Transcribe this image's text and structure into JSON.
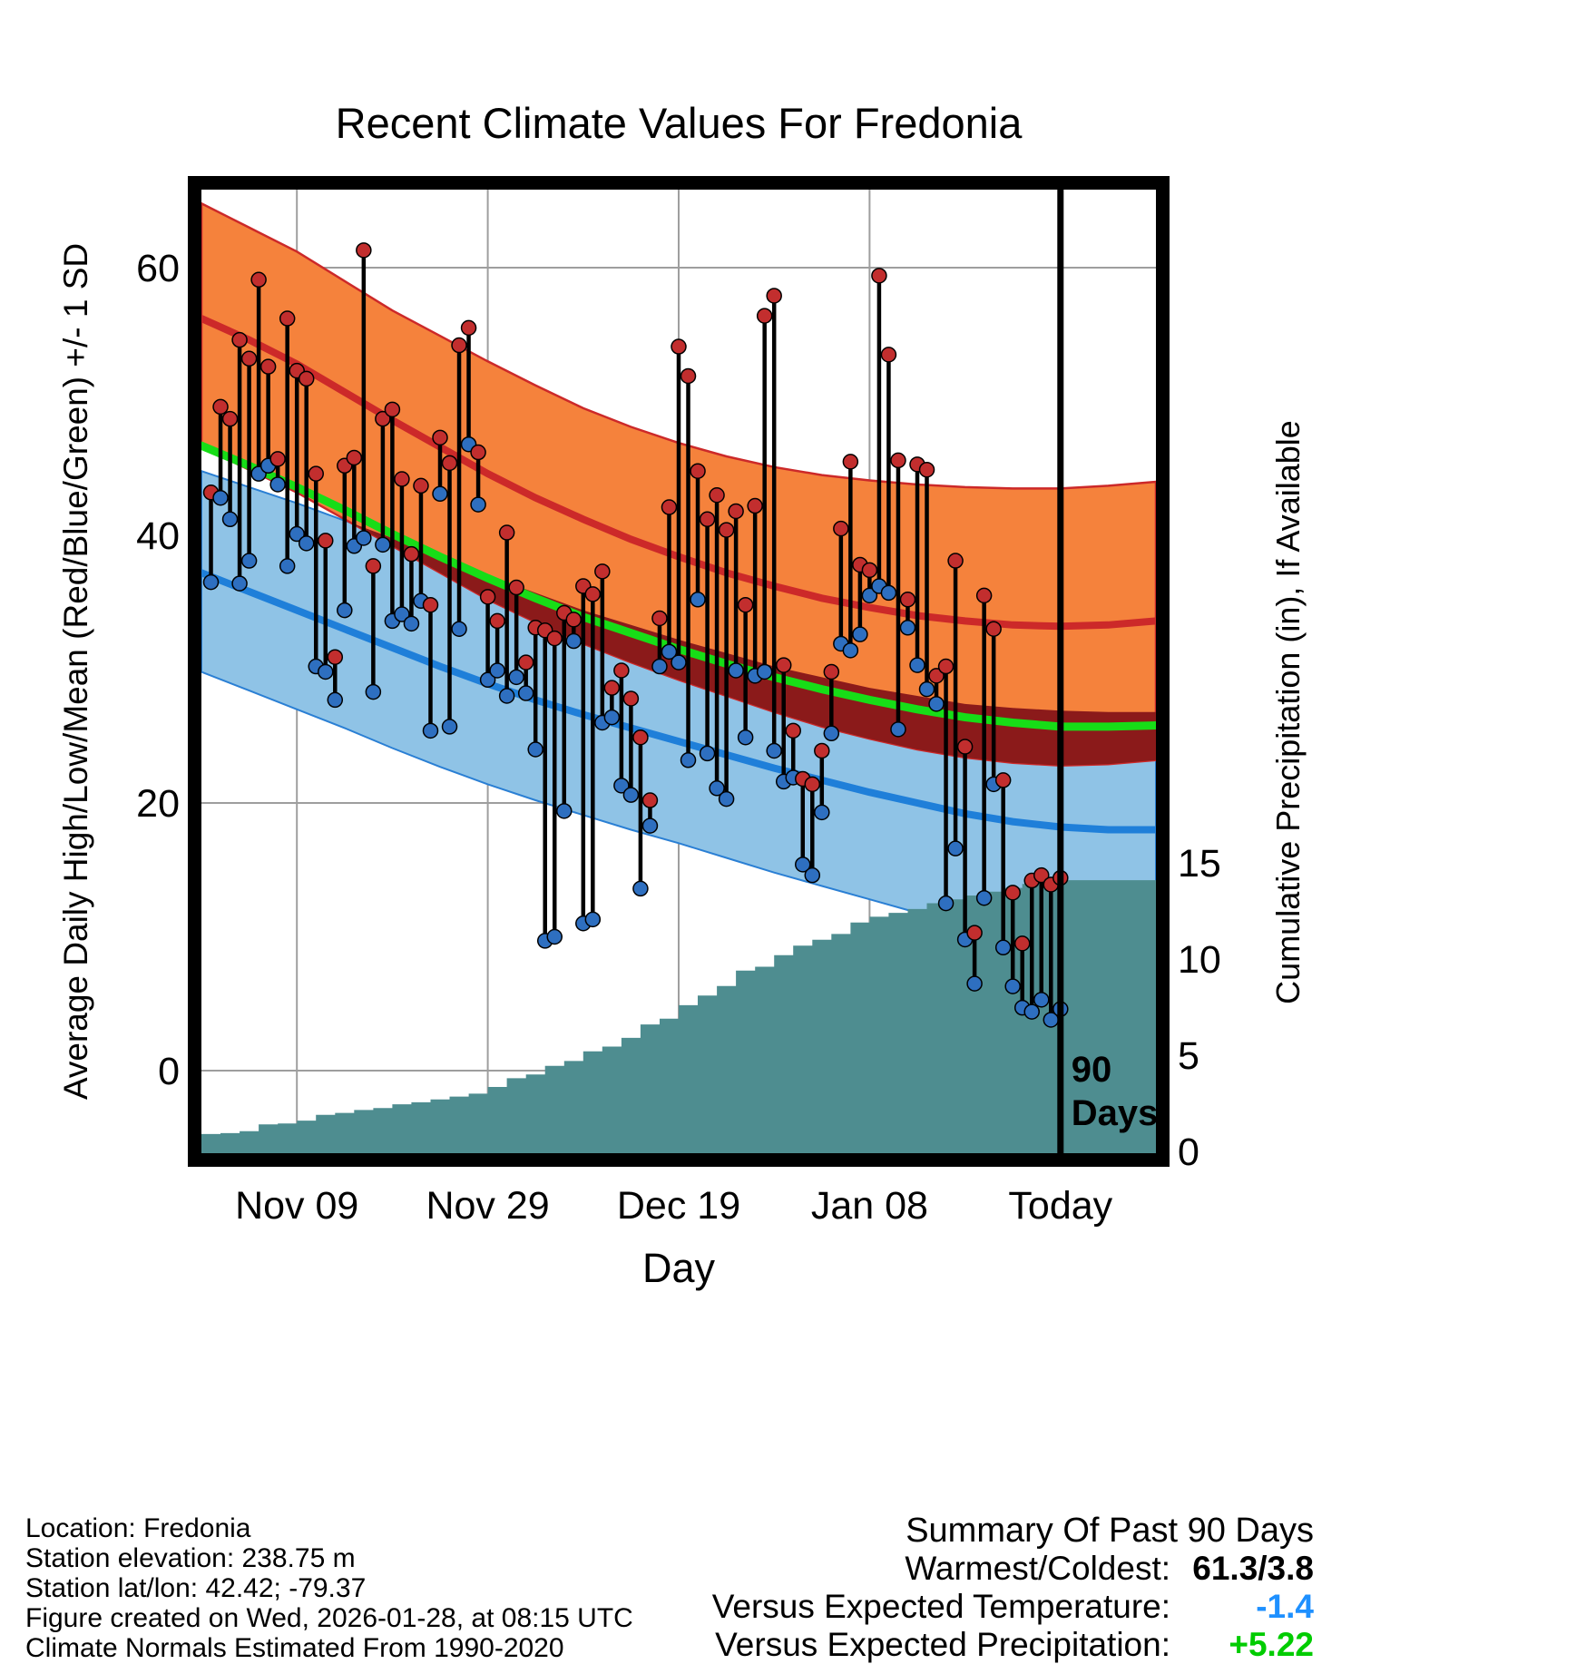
{
  "title": "Recent Climate Values For Fredonia",
  "axes": {
    "left_label": "Average Daily High/Low/Mean (Red/Blue/Green) +/- 1 SD",
    "right_label": "Cumulative Precipitation (in), If Available",
    "x_label": "Day"
  },
  "footer": {
    "lines": [
      "Location: Fredonia",
      "Station elevation: 238.75 m",
      "Station lat/lon: 42.42; -79.37",
      "Figure created on Wed, 2026-01-28, at 08:15 UTC",
      "Climate Normals Estimated From 1990-2020"
    ]
  },
  "summary": {
    "title": "Summary Of Past 90 Days",
    "rows": [
      {
        "label": "Warmest/Coldest:",
        "value": "61.3/3.8",
        "color": "#000000"
      },
      {
        "label": "Versus Expected Temperature:",
        "value": "-1.4",
        "color": "#1E90FF"
      },
      {
        "label": "Versus Expected Precipitation:",
        "value": "+5.22",
        "color": "#00CC00"
      }
    ]
  },
  "chart_data": {
    "type": "line",
    "description": "Daily observed high/low temperature bars with climate normal bands (high/low mean +/- 1 SD), mean line, and cumulative precipitation area over past 90 days",
    "x_axis": {
      "domain_days": [
        0,
        100
      ],
      "today_day": 90,
      "ticks": [
        {
          "day": 10,
          "label": "Nov 09"
        },
        {
          "day": 30,
          "label": "Nov 29"
        },
        {
          "day": 50,
          "label": "Dec 19"
        },
        {
          "day": 70,
          "label": "Jan 08"
        },
        {
          "day": 90,
          "label": "Today"
        }
      ]
    },
    "temp_axis": {
      "ticks": [
        0,
        20,
        40,
        60
      ],
      "range": [
        -6.2,
        65.8
      ]
    },
    "precip_axis": {
      "ticks": [
        0,
        5,
        10,
        15
      ],
      "range": [
        0,
        15
      ]
    },
    "today_annotation": {
      "line1": "90",
      "line2": "Days"
    },
    "normals": {
      "days": [
        0,
        5,
        10,
        15,
        20,
        25,
        30,
        35,
        40,
        45,
        50,
        55,
        60,
        65,
        70,
        75,
        80,
        85,
        90,
        95,
        100
      ],
      "high_upper": [
        64.8,
        63.0,
        61.2,
        59.0,
        56.8,
        54.9,
        53.0,
        51.2,
        49.5,
        48.1,
        46.9,
        45.9,
        45.1,
        44.5,
        44.1,
        43.8,
        43.6,
        43.5,
        43.5,
        43.7,
        44.0
      ],
      "high_mean": [
        56.2,
        54.6,
        52.8,
        50.7,
        48.6,
        46.6,
        44.6,
        42.8,
        41.2,
        39.7,
        38.4,
        37.2,
        36.2,
        35.3,
        34.6,
        34.0,
        33.6,
        33.3,
        33.2,
        33.3,
        33.6
      ],
      "high_lower": [
        46.6,
        44.9,
        43.2,
        41.2,
        39.2,
        37.2,
        35.2,
        33.5,
        31.9,
        30.5,
        29.2,
        28.0,
        26.8,
        25.7,
        24.8,
        24.0,
        23.4,
        23.0,
        22.8,
        22.9,
        23.2
      ],
      "mean": [
        46.7,
        45.2,
        43.6,
        41.9,
        40.1,
        38.4,
        36.8,
        35.3,
        33.9,
        32.7,
        31.5,
        30.4,
        29.4,
        28.5,
        27.7,
        27.0,
        26.4,
        26.0,
        25.7,
        25.7,
        25.8
      ],
      "low_upper": [
        44.8,
        43.6,
        42.4,
        41.1,
        39.8,
        38.4,
        37.0,
        35.7,
        34.4,
        33.3,
        32.2,
        31.2,
        30.2,
        29.4,
        28.6,
        28.0,
        27.4,
        27.1,
        26.9,
        26.8,
        26.8
      ],
      "low_mean": [
        37.2,
        35.8,
        34.4,
        33.0,
        31.6,
        30.2,
        28.9,
        27.7,
        26.6,
        25.6,
        24.6,
        23.6,
        22.6,
        21.7,
        20.8,
        20.0,
        19.2,
        18.6,
        18.2,
        18.0,
        18.0
      ],
      "low_lower": [
        29.8,
        28.4,
        27.0,
        25.6,
        24.1,
        22.7,
        21.4,
        20.2,
        19.1,
        18.0,
        17.0,
        15.9,
        14.8,
        13.8,
        12.8,
        11.8,
        10.8,
        10.1,
        9.5,
        9.3,
        9.2
      ]
    },
    "observations": {
      "first_day": 1,
      "note": "consecutive daily values, day index relative to x-axis domain",
      "highs": [
        43.2,
        49.6,
        48.7,
        54.6,
        53.2,
        59.1,
        52.6,
        45.7,
        56.2,
        52.3,
        51.7,
        44.6,
        39.6,
        30.9,
        45.2,
        45.8,
        61.3,
        37.7,
        48.7,
        49.4,
        44.2,
        38.6,
        43.7,
        34.8,
        47.3,
        45.4,
        54.2,
        55.5,
        46.2,
        35.4,
        33.6,
        40.2,
        36.1,
        30.5,
        33.1,
        32.9,
        32.3,
        34.2,
        33.7,
        36.2,
        35.6,
        37.3,
        28.6,
        29.9,
        27.8,
        24.9,
        20.2,
        33.8,
        42.1,
        54.1,
        51.9,
        44.8,
        41.2,
        43.0,
        40.4,
        41.8,
        34.8,
        42.2,
        56.4,
        57.9,
        30.3,
        25.4,
        21.8,
        21.4,
        23.9,
        29.8,
        40.5,
        45.5,
        37.8,
        37.4,
        59.4,
        53.5,
        45.6,
        35.2,
        45.3,
        44.9,
        29.5,
        30.2,
        38.1,
        24.2,
        10.3,
        35.5,
        33.0,
        21.7,
        13.3,
        9.5,
        14.2,
        14.6,
        13.9,
        14.4
      ],
      "lows": [
        36.5,
        42.8,
        41.2,
        36.4,
        38.1,
        44.6,
        45.2,
        43.8,
        37.7,
        40.1,
        39.4,
        30.2,
        29.8,
        27.7,
        34.4,
        39.2,
        39.8,
        28.3,
        39.3,
        33.6,
        34.1,
        33.4,
        35.1,
        25.4,
        43.1,
        25.7,
        33.0,
        46.8,
        42.3,
        29.2,
        29.9,
        28.0,
        29.4,
        28.2,
        24.0,
        9.7,
        10.0,
        19.4,
        32.1,
        11.0,
        11.3,
        26.0,
        26.4,
        21.3,
        20.6,
        13.6,
        18.3,
        30.2,
        31.3,
        30.5,
        23.2,
        35.2,
        23.7,
        21.1,
        20.3,
        29.9,
        24.9,
        29.5,
        29.8,
        23.9,
        21.6,
        21.9,
        15.4,
        14.6,
        19.3,
        25.2,
        31.9,
        31.4,
        32.6,
        35.5,
        36.2,
        35.7,
        25.5,
        33.1,
        30.3,
        28.5,
        27.4,
        12.5,
        16.6,
        9.8,
        6.5,
        12.9,
        21.4,
        9.2,
        6.3,
        4.7,
        4.4,
        5.3,
        3.8,
        4.6
      ]
    },
    "precip": {
      "days": [
        0,
        2,
        4,
        6,
        8,
        10,
        12,
        14,
        16,
        18,
        20,
        22,
        24,
        26,
        28,
        30,
        32,
        34,
        36,
        38,
        40,
        42,
        44,
        46,
        48,
        50,
        52,
        54,
        56,
        58,
        60,
        62,
        64,
        66,
        68,
        70,
        72,
        74,
        76,
        78,
        80,
        82,
        84,
        86,
        88,
        90,
        100
      ],
      "cumulative": [
        0.9,
        0.95,
        1.05,
        1.4,
        1.45,
        1.6,
        1.9,
        2.0,
        2.15,
        2.25,
        2.45,
        2.55,
        2.7,
        2.85,
        3.0,
        3.35,
        3.8,
        4.0,
        4.45,
        4.7,
        5.2,
        5.45,
        5.9,
        6.6,
        6.9,
        7.6,
        8.1,
        8.6,
        9.4,
        9.6,
        10.2,
        10.7,
        11.0,
        11.3,
        11.9,
        12.2,
        12.4,
        12.6,
        12.9,
        13.1,
        13.3,
        13.5,
        13.7,
        13.9,
        14.0,
        14.1,
        14.15
      ]
    },
    "colors": {
      "high_band": "#F5823C",
      "high_line": "#CC2929",
      "band_overlap": "#8B1A1A",
      "mean_line": "#17DD17",
      "low_band": "#8FC3E6",
      "low_line": "#1F7FD9",
      "band_edge_red": "#CC2929",
      "band_edge_blue": "#2A7FD4",
      "precip_fill": "#4E8D90",
      "obs_line": "#000000",
      "obs_high_dot": "#C22E2E",
      "obs_low_dot": "#2E6FC0",
      "grid": "#9E9E9E",
      "frame": "#000000"
    }
  }
}
